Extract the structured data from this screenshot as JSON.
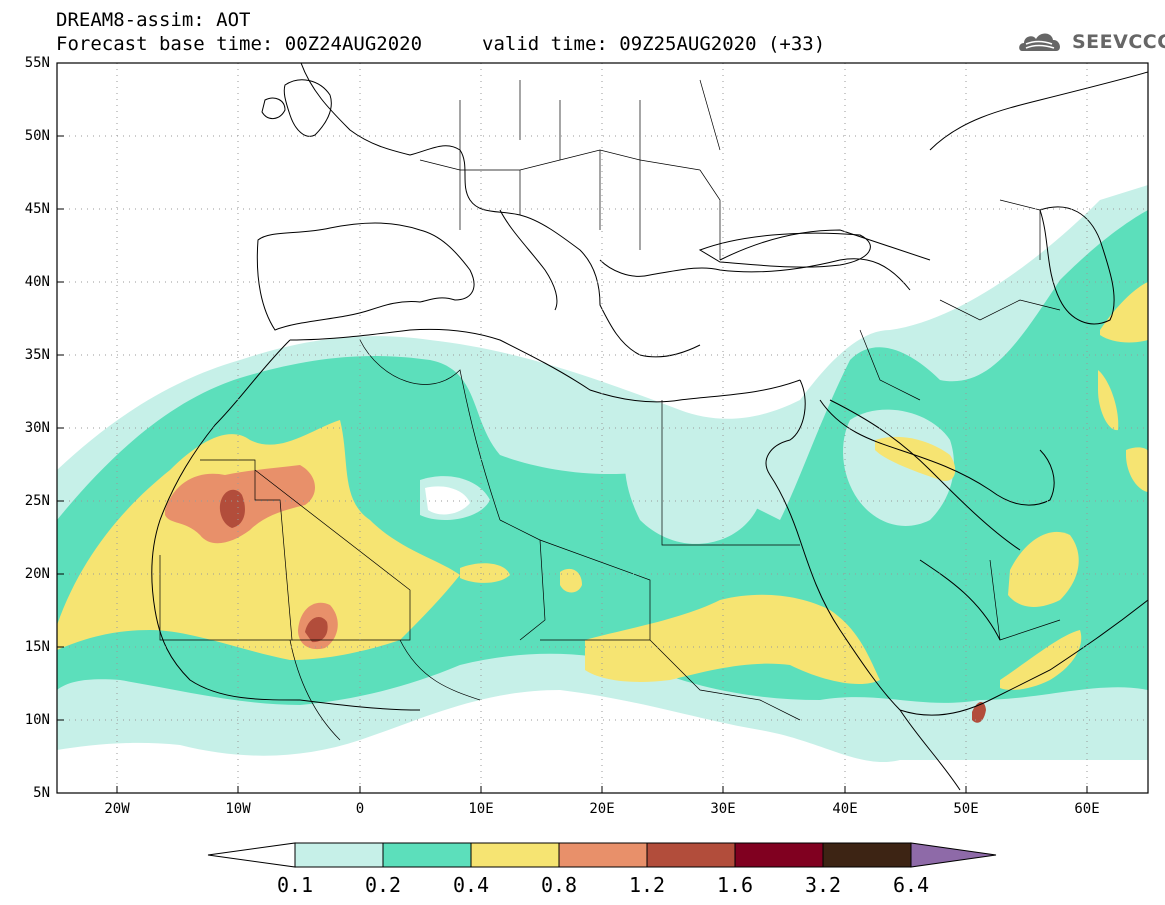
{
  "header": {
    "title_line1": "DREAM8-assim: AOT",
    "title_line2": "Forecast base time: 00Z24AUG2020",
    "valid_time": "valid time: 09Z25AUG2020 (+33)",
    "logo_text": "SEEVCCC"
  },
  "axes": {
    "lat_labels": [
      "55N",
      "50N",
      "45N",
      "40N",
      "35N",
      "30N",
      "25N",
      "20N",
      "15N",
      "10N",
      "5N"
    ],
    "lon_labels": [
      "20W",
      "10W",
      "0",
      "10E",
      "20E",
      "30E",
      "40E",
      "50E",
      "60E"
    ]
  },
  "colorbar": {
    "labels": [
      "0.1",
      "0.2",
      "0.4",
      "0.8",
      "1.2",
      "1.6",
      "3.2",
      "6.4"
    ],
    "colors": [
      "#ffffff",
      "#c6f0e8",
      "#5cdfbb",
      "#f6e472",
      "#e8906a",
      "#b24d3b",
      "#800020",
      "#3d2414",
      "#8e6aa8"
    ]
  },
  "colors": {
    "frame": "#000000",
    "grid": "#9a9a9a"
  }
}
